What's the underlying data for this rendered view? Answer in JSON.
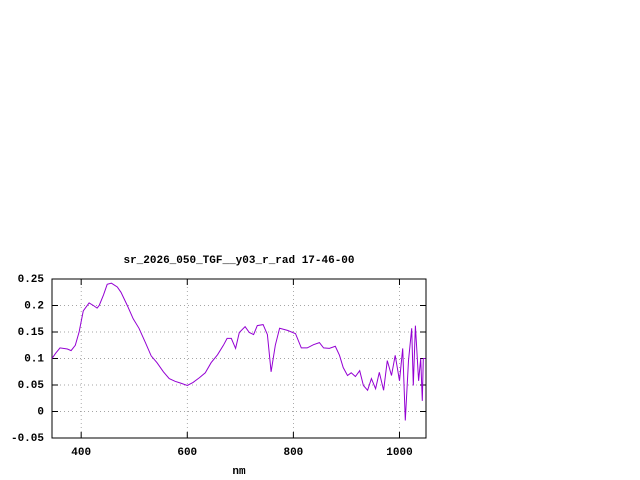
{
  "chart_data": {
    "type": "line",
    "title": "sr_2026_050_TGF__y03_r_rad 17-46-00",
    "x_label": "nm",
    "xlim": [
      345,
      1050
    ],
    "xticks": [
      400,
      600,
      800,
      1000
    ],
    "ylim": [
      -0.05,
      0.25
    ],
    "yticks": [
      0.25,
      0.2,
      0.15,
      0.1,
      0.05,
      0,
      -0.05
    ],
    "grid": true,
    "series": [
      {
        "color": "#9400d3",
        "x": [
          345,
          352,
          360,
          374,
          381,
          389,
          396,
          404,
          415,
          423,
          430,
          434,
          442,
          449,
          457,
          468,
          475,
          487,
          498,
          509,
          521,
          532,
          543,
          555,
          566,
          577,
          589,
          600,
          611,
          623,
          634,
          645,
          657,
          668,
          675,
          683,
          691,
          698,
          709,
          717,
          725,
          732,
          743,
          751,
          758,
          766,
          774,
          789,
          804,
          815,
          826,
          838,
          849,
          857,
          868,
          879,
          887,
          894,
          902,
          909,
          917,
          925,
          932,
          940,
          947,
          955,
          962,
          970,
          977,
          985,
          992,
          1000,
          1006,
          1011,
          1017,
          1023,
          1026,
          1030,
          1036,
          1040,
          1043,
          1045,
          1049
        ],
        "values": [
          0.1,
          0.11,
          0.12,
          0.118,
          0.115,
          0.125,
          0.15,
          0.19,
          0.205,
          0.2,
          0.195,
          0.2,
          0.22,
          0.24,
          0.242,
          0.235,
          0.225,
          0.2,
          0.175,
          0.157,
          0.13,
          0.105,
          0.092,
          0.075,
          0.062,
          0.057,
          0.053,
          0.049,
          0.055,
          0.064,
          0.073,
          0.092,
          0.107,
          0.125,
          0.138,
          0.138,
          0.119,
          0.149,
          0.16,
          0.149,
          0.145,
          0.162,
          0.164,
          0.145,
          0.075,
          0.125,
          0.157,
          0.153,
          0.147,
          0.12,
          0.12,
          0.126,
          0.13,
          0.12,
          0.119,
          0.123,
          0.106,
          0.083,
          0.068,
          0.073,
          0.066,
          0.077,
          0.049,
          0.04,
          0.062,
          0.043,
          0.074,
          0.04,
          0.096,
          0.068,
          0.106,
          0.058,
          0.119,
          -0.017,
          0.096,
          0.157,
          0.049,
          0.162,
          0.058,
          0.1,
          0.02,
          0.1,
          0.1
        ]
      }
    ]
  }
}
